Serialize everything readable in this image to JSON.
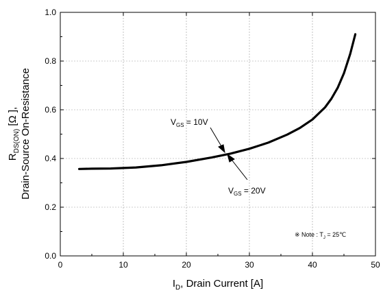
{
  "chart_data": {
    "type": "line",
    "xlabel": {
      "main": "I",
      "sub": "D",
      "rest": ", Drain Current [A]"
    },
    "ylabel": {
      "line1_main": "R",
      "line1_sub": "DS(ON)",
      "line1_rest": " [Ω ],",
      "line2": "Drain-Source On-Resistance"
    },
    "xlim": [
      0,
      50
    ],
    "ylim": [
      0.0,
      1.0
    ],
    "xticks": [
      0,
      10,
      20,
      30,
      40,
      50
    ],
    "yticks": [
      0.0,
      0.2,
      0.4,
      0.6,
      0.8,
      1.0
    ],
    "xtick_labels": [
      "0",
      "10",
      "20",
      "30",
      "40",
      "50"
    ],
    "ytick_labels": [
      "0.0",
      "0.2",
      "0.4",
      "0.6",
      "0.8",
      "1.0"
    ],
    "grid": true,
    "series": [
      {
        "x": [
          3,
          5,
          8,
          12,
          16,
          20,
          24,
          27,
          30,
          33,
          36,
          38,
          40,
          42,
          43,
          44,
          45,
          46,
          46.8
        ],
        "y": [
          0.357,
          0.358,
          0.359,
          0.363,
          0.372,
          0.386,
          0.404,
          0.42,
          0.44,
          0.465,
          0.498,
          0.525,
          0.56,
          0.61,
          0.645,
          0.69,
          0.75,
          0.83,
          0.91
        ]
      }
    ],
    "annotations": [
      {
        "main": "V",
        "sub": "GS",
        "rest": " = 10V"
      },
      {
        "main": "V",
        "sub": "GS",
        "rest": " = 20V"
      }
    ],
    "note": {
      "prefix": "※ Note : T",
      "sub": "J",
      "rest": " = 25℃"
    }
  }
}
